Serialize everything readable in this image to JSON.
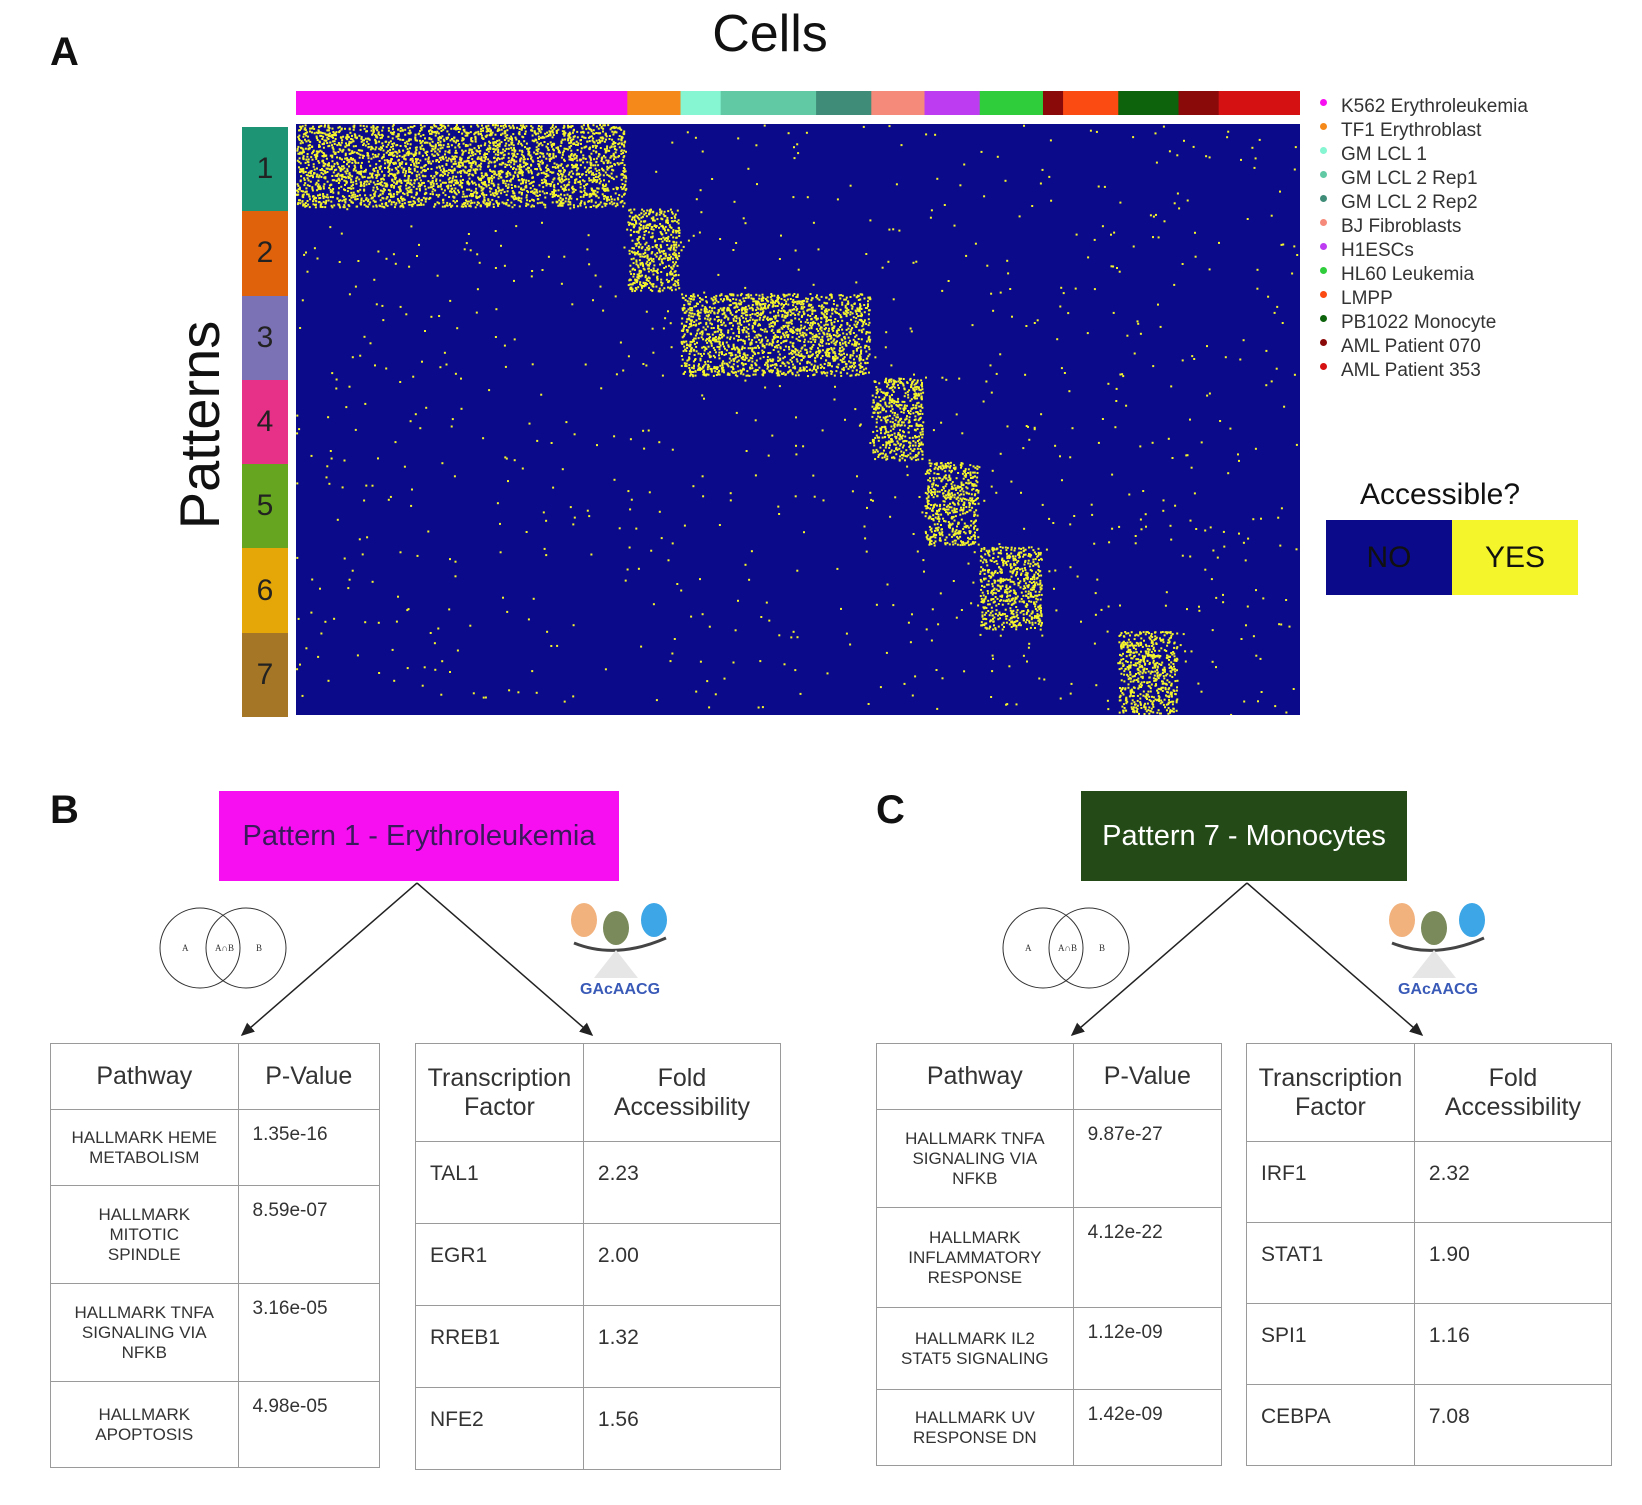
{
  "panels": {
    "a": "A",
    "b": "B",
    "c": "C"
  },
  "panel_a": {
    "title": "Cells",
    "ylabel": "Patterns",
    "patterns": [
      {
        "label": "1",
        "color": "#1d9474"
      },
      {
        "label": "2",
        "color": "#e0620a"
      },
      {
        "label": "3",
        "color": "#7b71b5"
      },
      {
        "label": "4",
        "color": "#e73188"
      },
      {
        "label": "5",
        "color": "#66a51f"
      },
      {
        "label": "6",
        "color": "#e5a707"
      },
      {
        "label": "7",
        "color": "#a47626"
      }
    ],
    "legend": [
      {
        "label": "K562 Erythroleukemia",
        "color": "#f70ff2"
      },
      {
        "label": "TF1 Erythroblast",
        "color": "#f5891a"
      },
      {
        "label": "GM LCL 1",
        "color": "#85f5d2"
      },
      {
        "label": "GM LCL 2 Rep1",
        "color": "#62c9a5"
      },
      {
        "label": "GM LCL 2 Rep2",
        "color": "#3f8d78"
      },
      {
        "label": "BJ Fibroblasts",
        "color": "#f58a7a"
      },
      {
        "label": "H1ESCs",
        "color": "#bd3cf2"
      },
      {
        "label": "HL60 Leukemia",
        "color": "#2fcd3c"
      },
      {
        "label": "LMPP",
        "color": "#fb4a12"
      },
      {
        "label": "PB1022 Monocyte",
        "color": "#0d620c"
      },
      {
        "label": "AML Patient 070",
        "color": "#8a0a0a"
      },
      {
        "label": "AML Patient 353",
        "color": "#d51111"
      }
    ],
    "accessible_title": "Accessible?",
    "accessible_no": "NO",
    "accessible_yes": "YES",
    "no_color": "#0b0a8a",
    "yes_color": "#f5f52c"
  },
  "chart_data": {
    "type": "heatmap",
    "title": "Cells",
    "xlabel": "Cells",
    "ylabel": "Patterns",
    "rows": [
      "1",
      "2",
      "3",
      "4",
      "5",
      "6",
      "7"
    ],
    "column_groups": [
      {
        "name": "K562 Erythroleukemia",
        "fraction": 0.33
      },
      {
        "name": "TF1 Erythroblast",
        "fraction": 0.053
      },
      {
        "name": "GM LCL 1",
        "fraction": 0.04
      },
      {
        "name": "GM LCL 2 Rep1",
        "fraction": 0.095
      },
      {
        "name": "GM LCL 2 Rep2",
        "fraction": 0.055
      },
      {
        "name": "BJ Fibroblasts",
        "fraction": 0.053
      },
      {
        "name": "H1ESCs",
        "fraction": 0.055
      },
      {
        "name": "HL60 Leukemia",
        "fraction": 0.063
      },
      {
        "name": "AML Patient 070",
        "fraction": 0.02
      },
      {
        "name": "LMPP",
        "fraction": 0.055
      },
      {
        "name": "PB1022 Monocyte",
        "fraction": 0.06
      },
      {
        "name": "AML Patient 070",
        "fraction": 0.04
      },
      {
        "name": "AML Patient 353",
        "fraction": 0.081
      }
    ],
    "dense_blocks": [
      {
        "pattern": "1",
        "col_start": 0.0,
        "col_end": 0.33
      },
      {
        "pattern": "2",
        "col_start": 0.33,
        "col_end": 0.383
      },
      {
        "pattern": "3",
        "col_start": 0.383,
        "col_end": 0.573
      },
      {
        "pattern": "4",
        "col_start": 0.573,
        "col_end": 0.626
      },
      {
        "pattern": "5",
        "col_start": 0.626,
        "col_end": 0.681
      },
      {
        "pattern": "6",
        "col_start": 0.681,
        "col_end": 0.744
      },
      {
        "pattern": "7",
        "col_start": 0.819,
        "col_end": 0.879
      }
    ],
    "values": [
      "NO",
      "YES"
    ]
  },
  "panel_b": {
    "pattern_label": "Pattern 1 - Erythroleukemia",
    "box_color": "#f70ff2",
    "venn": {
      "a": "A",
      "ab": "A∩B",
      "b": "B"
    },
    "pathway_header": "Pathway",
    "pvalue_header": "P-Value",
    "tf_header_1": "Transcription",
    "tf_header_2": "Factor",
    "fold_header_1": "Fold",
    "fold_header_2": "Accessibility",
    "pathways": [
      {
        "name_lines": [
          "HALLMARK HEME",
          "METABOLISM"
        ],
        "p": "1.35e-16"
      },
      {
        "name_lines": [
          "HALLMARK",
          "MITOTIC",
          "SPINDLE"
        ],
        "p": "8.59e-07"
      },
      {
        "name_lines": [
          "HALLMARK TNFA",
          "SIGNALING VIA",
          "NFKB"
        ],
        "p": "3.16e-05"
      },
      {
        "name_lines": [
          "HALLMARK",
          "APOPTOSIS"
        ],
        "p": "4.98e-05"
      }
    ],
    "tfs": [
      {
        "tf": "TAL1",
        "fold": "2.23"
      },
      {
        "tf": "EGR1",
        "fold": "2.00"
      },
      {
        "tf": "RREB1",
        "fold": "1.32"
      },
      {
        "tf": "NFE2",
        "fold": "1.56"
      }
    ]
  },
  "panel_c": {
    "pattern_label": "Pattern 7 - Monocytes",
    "box_color": "#234a17",
    "venn": {
      "a": "A",
      "ab": "A∩B",
      "b": "B"
    },
    "pathway_header": "Pathway",
    "pvalue_header": "P-Value",
    "tf_header_1": "Transcription",
    "tf_header_2": "Factor",
    "fold_header_1": "Fold",
    "fold_header_2": "Accessibility",
    "pathways": [
      {
        "name_lines": [
          "HALLMARK TNFA",
          "SIGNALING VIA",
          "NFKB"
        ],
        "p": "9.87e-27"
      },
      {
        "name_lines": [
          "HALLMARK",
          "INFLAMMATORY",
          "RESPONSE"
        ],
        "p": "4.12e-22"
      },
      {
        "name_lines": [
          "HALLMARK IL2",
          "STAT5 SIGNALING"
        ],
        "p": "1.12e-09"
      },
      {
        "name_lines": [
          "HALLMARK UV",
          "RESPONSE DN"
        ],
        "p": "1.42e-09"
      }
    ],
    "tfs": [
      {
        "tf": "IRF1",
        "fold": "2.32"
      },
      {
        "tf": "STAT1",
        "fold": "1.90"
      },
      {
        "tf": "SPI1",
        "fold": "1.16"
      },
      {
        "tf": "CEBPA",
        "fold": "7.08"
      }
    ]
  }
}
